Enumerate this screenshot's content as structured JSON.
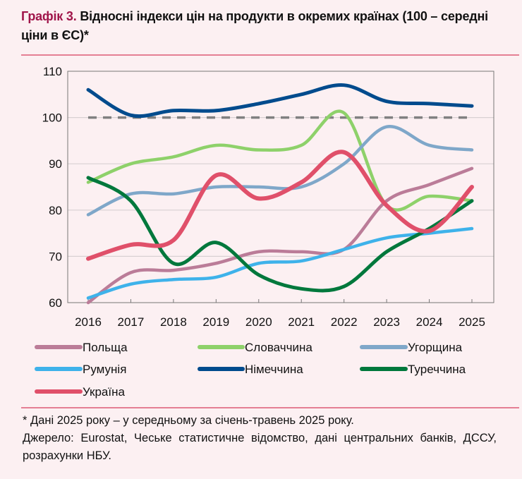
{
  "title": {
    "lead": "Графік 3.",
    "text": "Відносні індекси цін на продукти в окремих країнах (100 – середні ціни в ЄС)*"
  },
  "chart_data": {
    "type": "line",
    "title": "Відносні індекси цін на продукти в окремих країнах (100 – середні ціни в ЄС)*",
    "xlabel": "",
    "ylabel": "",
    "categories": [
      "2016",
      "2017",
      "2018",
      "2019",
      "2020",
      "2021",
      "2022",
      "2023",
      "2024",
      "2025"
    ],
    "ylim": [
      60,
      110
    ],
    "yticks": [
      60,
      70,
      80,
      90,
      100,
      110
    ],
    "reference_line": {
      "value": 100,
      "style": "dashed",
      "color": "#808080"
    },
    "grid": true,
    "legend_position": "bottom",
    "series": [
      {
        "name": "Польща",
        "color": "#bb7c98",
        "values": [
          60,
          66.5,
          67,
          68.5,
          71,
          71,
          71.5,
          82,
          85.5,
          89
        ]
      },
      {
        "name": "Словаччина",
        "color": "#8ed16a",
        "values": [
          86,
          90,
          91.5,
          94,
          93,
          94,
          101,
          81,
          83,
          82
        ]
      },
      {
        "name": "Угорщина",
        "color": "#7fa7c9",
        "values": [
          79,
          83.5,
          83.5,
          85,
          85,
          85,
          90,
          98,
          94,
          93
        ]
      },
      {
        "name": "Румунія",
        "color": "#3eb2ea",
        "values": [
          61,
          64,
          65,
          65.5,
          68.5,
          69,
          71.5,
          74,
          75,
          76
        ]
      },
      {
        "name": "Німеччина",
        "color": "#004b8d",
        "values": [
          106,
          100.5,
          101.5,
          101.5,
          103,
          105,
          107,
          103.5,
          103,
          102.5
        ]
      },
      {
        "name": "Туреччина",
        "color": "#00783c",
        "values": [
          87,
          82,
          68.5,
          73,
          66,
          63,
          63.5,
          71,
          76,
          82
        ]
      },
      {
        "name": "Україна",
        "color": "#e0506a",
        "values": [
          69.5,
          72.5,
          73.5,
          87.5,
          82.5,
          86,
          92.5,
          81,
          75.5,
          85
        ]
      }
    ]
  },
  "footer": {
    "note": "* Дані 2025 року – у середньому за січень-травень 2025 року.",
    "source": "Джерело: Eurostat, Чеське статистичне відомство, дані центральних банків, ДССУ, розрахунки НБУ."
  }
}
